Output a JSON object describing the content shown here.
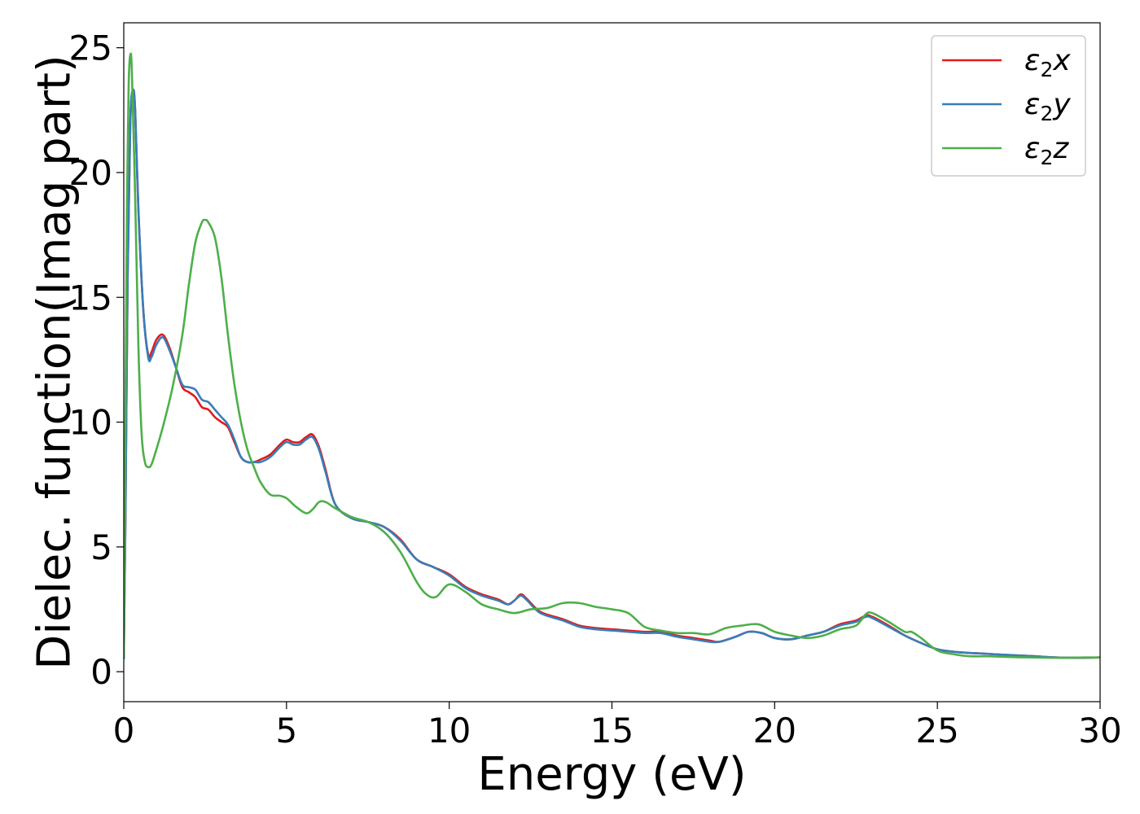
{
  "chart_data": {
    "type": "line",
    "title": "",
    "xlabel": "Energy (eV)",
    "ylabel": "Dielec. function(Imag part)",
    "xlim": [
      0,
      30
    ],
    "ylim": [
      -1.2,
      26
    ],
    "xticks": [
      0,
      5,
      10,
      15,
      20,
      25,
      30
    ],
    "yticks": [
      0,
      5,
      10,
      15,
      20,
      25
    ],
    "grid": false,
    "legend_position": "top-right",
    "series": [
      {
        "name": "ε₂x",
        "legend_base": "ε",
        "legend_sub": "2",
        "legend_var": "x",
        "color": "#e41a1c",
        "x": [
          0,
          0.05,
          0.12,
          0.2,
          0.28,
          0.35,
          0.45,
          0.6,
          0.75,
          0.85,
          1.0,
          1.2,
          1.4,
          1.6,
          1.8,
          2.0,
          2.2,
          2.4,
          2.6,
          2.8,
          3.0,
          3.2,
          3.4,
          3.6,
          3.8,
          4.0,
          4.2,
          4.5,
          4.8,
          5.0,
          5.2,
          5.4,
          5.6,
          5.8,
          6.0,
          6.2,
          6.5,
          7.0,
          7.5,
          8.0,
          8.5,
          9.0,
          9.5,
          10.0,
          10.5,
          11.0,
          11.5,
          11.8,
          12.0,
          12.2,
          12.4,
          12.8,
          13.5,
          14.0,
          14.5,
          15.0,
          15.5,
          16.0,
          16.5,
          17.0,
          17.5,
          18.0,
          18.3,
          18.8,
          19.2,
          19.6,
          20.0,
          20.5,
          21.0,
          21.5,
          22.0,
          22.5,
          22.8,
          23.0,
          23.5,
          24.0,
          24.5,
          25.0,
          25.5,
          26.0,
          26.5,
          27.0,
          27.5,
          28.0,
          28.5,
          29.0,
          29.5,
          30.0
        ],
        "y": [
          0.5,
          6.0,
          16.0,
          22.0,
          23.3,
          22.5,
          18.5,
          14.5,
          12.7,
          12.8,
          13.3,
          13.5,
          13.0,
          12.2,
          11.4,
          11.2,
          11.0,
          10.6,
          10.5,
          10.2,
          10.0,
          9.8,
          9.2,
          8.6,
          8.4,
          8.4,
          8.5,
          8.7,
          9.1,
          9.3,
          9.2,
          9.2,
          9.4,
          9.5,
          9.0,
          8.1,
          6.7,
          6.15,
          6.0,
          5.8,
          5.3,
          4.5,
          4.2,
          3.9,
          3.4,
          3.1,
          2.9,
          2.7,
          2.85,
          3.1,
          2.9,
          2.4,
          2.1,
          1.85,
          1.75,
          1.7,
          1.65,
          1.6,
          1.6,
          1.45,
          1.35,
          1.25,
          1.2,
          1.4,
          1.6,
          1.55,
          1.35,
          1.3,
          1.45,
          1.6,
          1.9,
          2.05,
          2.25,
          2.2,
          1.85,
          1.45,
          1.15,
          0.9,
          0.8,
          0.75,
          0.72,
          0.68,
          0.65,
          0.62,
          0.58,
          0.56,
          0.56,
          0.57
        ]
      },
      {
        "name": "ε₂y",
        "legend_base": "ε",
        "legend_sub": "2",
        "legend_var": "y",
        "color": "#377eb8",
        "x": [
          0,
          0.05,
          0.12,
          0.2,
          0.28,
          0.35,
          0.45,
          0.6,
          0.75,
          0.85,
          1.0,
          1.2,
          1.4,
          1.6,
          1.8,
          2.0,
          2.2,
          2.4,
          2.6,
          2.8,
          3.0,
          3.2,
          3.4,
          3.6,
          3.8,
          4.0,
          4.2,
          4.5,
          4.8,
          5.0,
          5.2,
          5.4,
          5.6,
          5.8,
          6.0,
          6.2,
          6.5,
          7.0,
          7.5,
          8.0,
          8.5,
          9.0,
          9.5,
          10.0,
          10.5,
          11.0,
          11.5,
          11.8,
          12.0,
          12.2,
          12.4,
          12.8,
          13.5,
          14.0,
          14.5,
          15.0,
          15.5,
          16.0,
          16.5,
          17.0,
          17.5,
          18.0,
          18.3,
          18.8,
          19.2,
          19.6,
          20.0,
          20.5,
          21.0,
          21.5,
          22.0,
          22.5,
          22.8,
          23.0,
          23.5,
          24.0,
          24.5,
          25.0,
          25.5,
          26.0,
          26.5,
          27.0,
          27.5,
          28.0,
          28.5,
          29.0,
          29.5,
          30.0
        ],
        "y": [
          0.5,
          6.0,
          16.0,
          22.0,
          23.3,
          22.5,
          18.5,
          14.5,
          12.6,
          12.6,
          13.1,
          13.4,
          12.9,
          12.2,
          11.5,
          11.4,
          11.3,
          10.9,
          10.8,
          10.5,
          10.2,
          9.9,
          9.3,
          8.6,
          8.4,
          8.4,
          8.4,
          8.6,
          9.0,
          9.2,
          9.1,
          9.1,
          9.3,
          9.4,
          8.9,
          8.0,
          6.7,
          6.15,
          6.0,
          5.8,
          5.25,
          4.5,
          4.2,
          3.85,
          3.35,
          3.05,
          2.85,
          2.7,
          2.85,
          3.05,
          2.85,
          2.35,
          2.05,
          1.8,
          1.7,
          1.65,
          1.6,
          1.55,
          1.55,
          1.4,
          1.3,
          1.2,
          1.2,
          1.4,
          1.6,
          1.55,
          1.35,
          1.3,
          1.45,
          1.6,
          1.85,
          2.0,
          2.2,
          2.15,
          1.8,
          1.45,
          1.15,
          0.9,
          0.8,
          0.75,
          0.72,
          0.68,
          0.65,
          0.62,
          0.58,
          0.56,
          0.56,
          0.57
        ]
      },
      {
        "name": "ε₂z",
        "legend_base": "ε",
        "legend_sub": "2",
        "legend_var": "z",
        "color": "#4daf4a",
        "x": [
          0,
          0.05,
          0.1,
          0.15,
          0.2,
          0.25,
          0.35,
          0.45,
          0.55,
          0.65,
          0.75,
          0.85,
          1.0,
          1.2,
          1.5,
          1.8,
          2.0,
          2.2,
          2.4,
          2.5,
          2.6,
          2.8,
          3.0,
          3.2,
          3.4,
          3.6,
          3.8,
          4.0,
          4.2,
          4.5,
          4.8,
          5.0,
          5.3,
          5.6,
          5.8,
          6.0,
          6.2,
          6.5,
          7.0,
          7.5,
          8.0,
          8.5,
          9.0,
          9.3,
          9.6,
          10.0,
          10.5,
          11.0,
          11.5,
          12.0,
          12.5,
          13.0,
          13.5,
          14.0,
          14.5,
          15.0,
          15.5,
          16.0,
          16.5,
          17.0,
          17.5,
          18.0,
          18.5,
          19.0,
          19.5,
          20.0,
          20.5,
          21.0,
          21.5,
          22.0,
          22.5,
          22.8,
          23.0,
          23.5,
          24.0,
          24.2,
          24.5,
          25.0,
          25.5,
          26.0,
          26.5,
          27.0,
          27.5,
          28.0,
          28.5,
          29.0,
          29.5,
          30.0
        ],
        "y": [
          0.5,
          10.0,
          19.0,
          23.5,
          24.7,
          24.0,
          19.0,
          13.0,
          9.5,
          8.4,
          8.2,
          8.3,
          8.9,
          9.8,
          11.4,
          13.5,
          15.5,
          17.2,
          18.0,
          18.1,
          18.0,
          17.4,
          15.8,
          13.5,
          11.5,
          10.0,
          8.9,
          8.2,
          7.6,
          7.1,
          7.05,
          6.95,
          6.6,
          6.35,
          6.5,
          6.8,
          6.8,
          6.55,
          6.2,
          6.0,
          5.6,
          4.8,
          3.6,
          3.1,
          3.0,
          3.5,
          3.2,
          2.7,
          2.5,
          2.35,
          2.5,
          2.55,
          2.75,
          2.75,
          2.6,
          2.5,
          2.35,
          1.8,
          1.65,
          1.55,
          1.55,
          1.5,
          1.75,
          1.85,
          1.9,
          1.6,
          1.45,
          1.35,
          1.45,
          1.7,
          1.85,
          2.3,
          2.35,
          2.0,
          1.6,
          1.6,
          1.35,
          0.85,
          0.7,
          0.62,
          0.62,
          0.6,
          0.58,
          0.57,
          0.56,
          0.56,
          0.57,
          0.57
        ]
      }
    ]
  }
}
